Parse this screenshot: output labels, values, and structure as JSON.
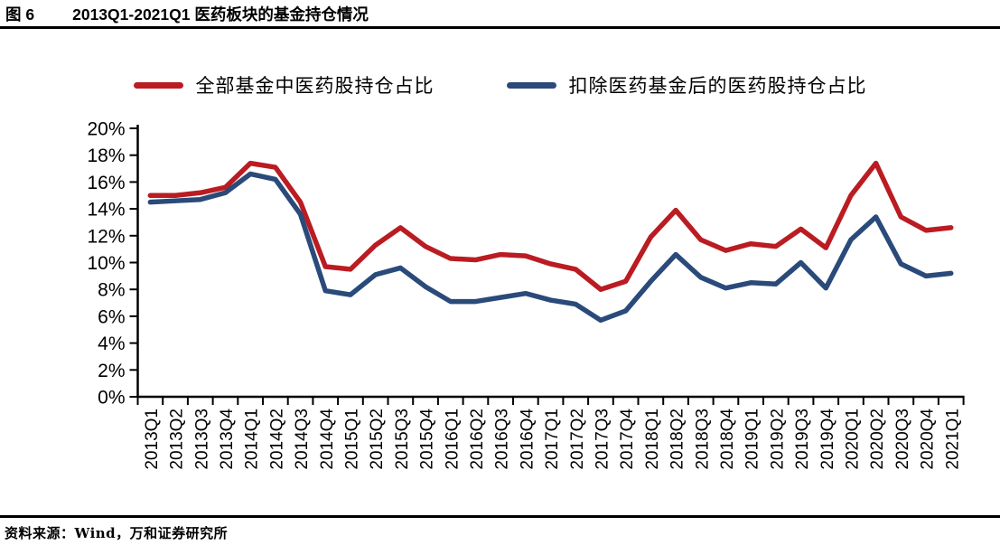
{
  "header": {
    "figure_label": "图 6",
    "title": "2013Q1-2021Q1 医药板块的基金持仓情况"
  },
  "footer": {
    "source": "资料来源：Wind，万和证券研究所"
  },
  "chart_data": {
    "type": "line",
    "title": "2013Q1-2021Q1 医药板块的基金持仓情况",
    "xlabel": "",
    "ylabel": "",
    "ylim": [
      0,
      20
    ],
    "ytick_step": 2,
    "ytick_suffix": "%",
    "grid": false,
    "legend_position": "top",
    "categories": [
      "2013Q1",
      "2013Q2",
      "2013Q3",
      "2013Q4",
      "2014Q1",
      "2014Q2",
      "2014Q3",
      "2014Q4",
      "2015Q1",
      "2015Q2",
      "2015Q3",
      "2015Q4",
      "2016Q1",
      "2016Q2",
      "2016Q3",
      "2016Q4",
      "2017Q1",
      "2017Q2",
      "2017Q3",
      "2017Q4",
      "2018Q1",
      "2018Q2",
      "2018Q3",
      "2018Q4",
      "2019Q1",
      "2019Q2",
      "2019Q3",
      "2019Q4",
      "2020Q1",
      "2020Q2",
      "2020Q3",
      "2020Q4",
      "2021Q1"
    ],
    "series": [
      {
        "name": "全部基金中医药股持仓占比",
        "color": "#ba1c22",
        "values": [
          15.0,
          15.0,
          15.2,
          15.6,
          17.4,
          17.1,
          14.5,
          9.7,
          9.5,
          11.3,
          12.6,
          11.2,
          10.3,
          10.2,
          10.6,
          10.5,
          9.9,
          9.5,
          8.0,
          8.6,
          11.9,
          13.9,
          11.7,
          10.9,
          11.4,
          11.2,
          12.5,
          11.1,
          15.0,
          17.4,
          13.4,
          12.4,
          12.6
        ]
      },
      {
        "name": "扣除医药基金后的医药股持仓占比",
        "color": "#2a4a7a",
        "values": [
          14.5,
          14.6,
          14.7,
          15.2,
          16.6,
          16.2,
          13.6,
          7.9,
          7.6,
          9.1,
          9.6,
          8.2,
          7.1,
          7.1,
          7.4,
          7.7,
          7.2,
          6.9,
          5.7,
          6.4,
          8.6,
          10.6,
          8.9,
          8.1,
          8.5,
          8.4,
          10.0,
          8.1,
          11.7,
          13.4,
          9.9,
          9.0,
          9.2
        ]
      }
    ]
  }
}
